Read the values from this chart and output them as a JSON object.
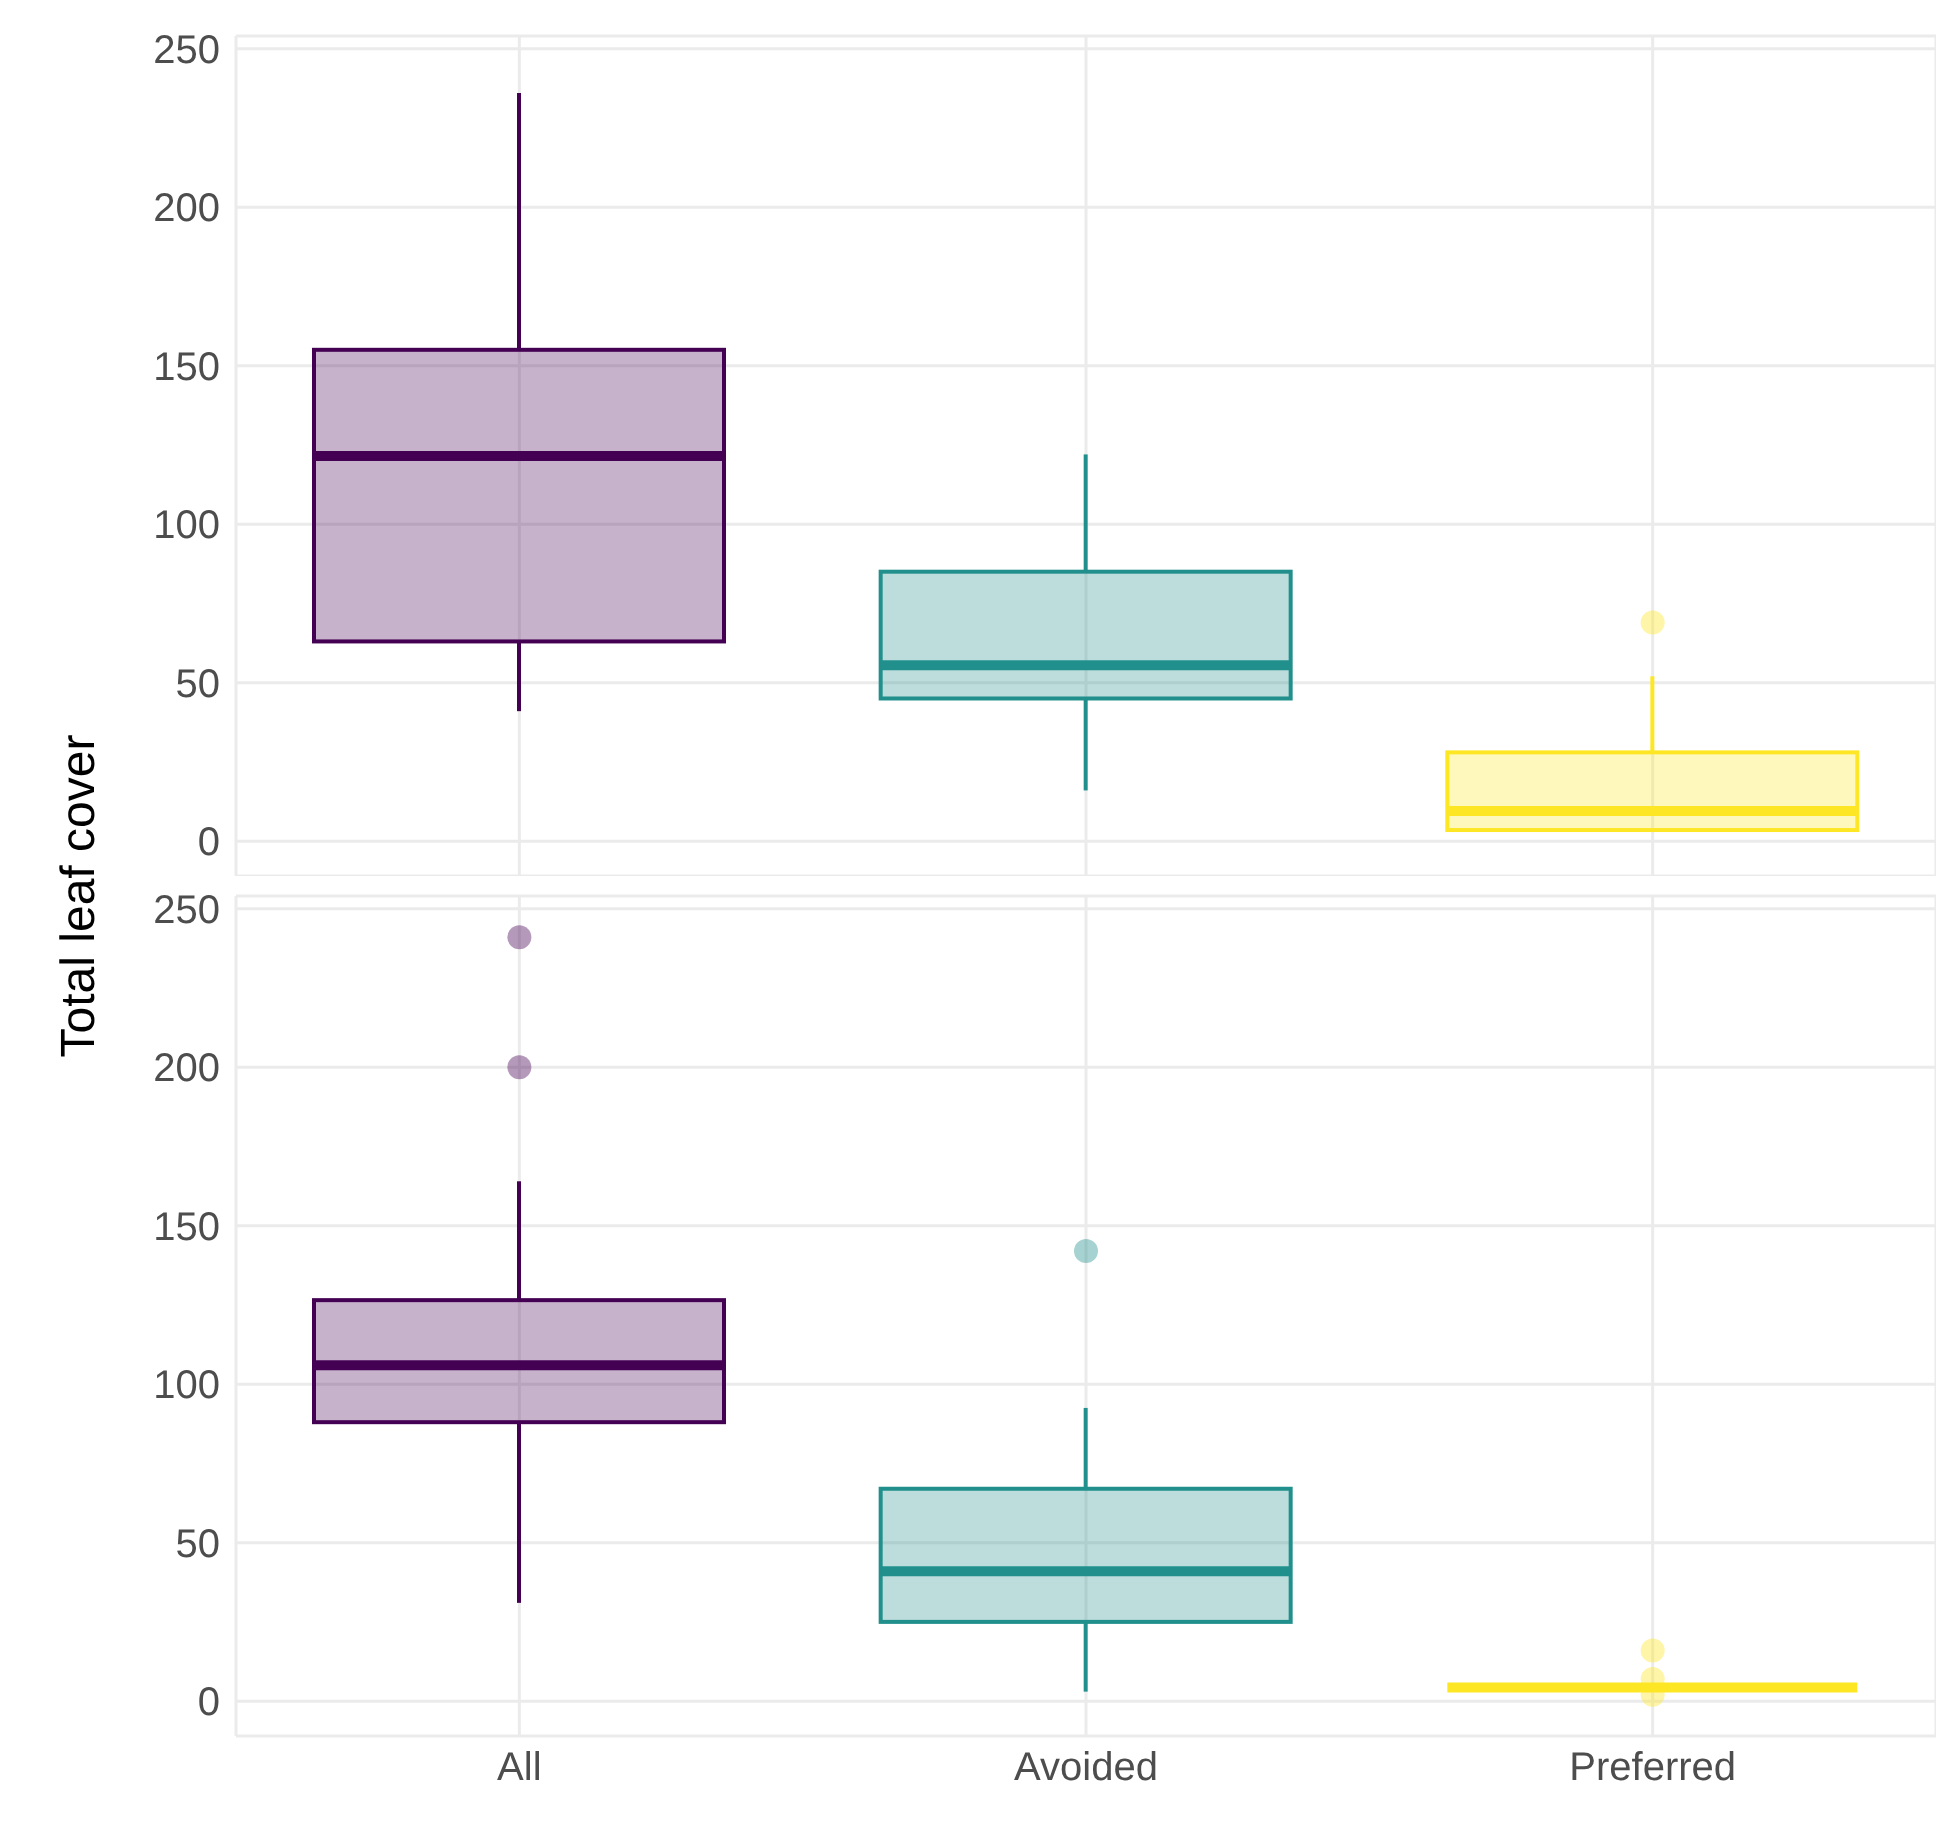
{
  "chart_data": [
    {
      "type": "box",
      "ylabel": "Total leaf cover",
      "categories": [
        null,
        null,
        null
      ],
      "colors": [
        "#440154",
        "#21908c",
        "#fde725"
      ],
      "ylim": [
        -11,
        254
      ],
      "yticks": [
        0,
        50,
        100,
        150,
        200,
        250
      ],
      "grid": true,
      "tick_labels": "y",
      "boxes": [
        {
          "low": 41,
          "q1": 63,
          "median": 121.5,
          "q3": 155,
          "high": 236
        },
        {
          "low": 16,
          "q1": 45,
          "median": 55.5,
          "q3": 85,
          "high": 122
        },
        {
          "low": 3,
          "q1": 3.5,
          "median": 9.5,
          "q3": 28,
          "high": 52,
          "outliers": [
            69
          ]
        }
      ]
    },
    {
      "type": "box",
      "categories": [
        "All",
        "Avoided",
        "Preferred"
      ],
      "colors": [
        "#440154",
        "#21908c",
        "#fde725"
      ],
      "ylim": [
        -11,
        254
      ],
      "yticks": [
        0,
        50,
        100,
        150,
        200,
        250
      ],
      "grid": true,
      "boxes": [
        {
          "low": 31,
          "q1": 88,
          "median": 106,
          "q3": 126.5,
          "high": 164,
          "outliers": [
            241,
            200
          ]
        },
        {
          "low": 3,
          "q1": 25,
          "median": 41,
          "q3": 67,
          "high": 92.5,
          "outliers": [
            142
          ]
        },
        {
          "low": 4.3,
          "q1": 4.3,
          "median": 4.3,
          "q3": 4.3,
          "high": 4.3,
          "outliers": [
            16,
            7,
            2
          ]
        }
      ]
    }
  ]
}
